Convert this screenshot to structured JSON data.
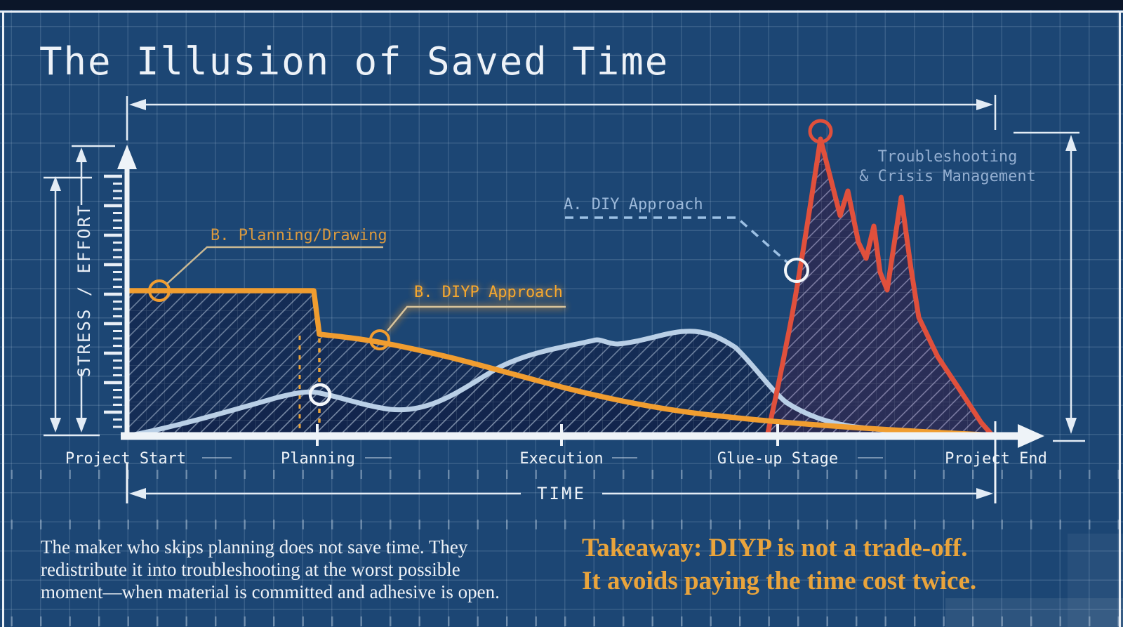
{
  "frame": {
    "title": "The Illusion of Saved Time"
  },
  "colors": {
    "background": "#1c4674",
    "grid": "#c6daf0",
    "white_ink": "#eef3f8",
    "orange": "#f09d30",
    "orange_label_muted": "#d9993f",
    "orange_label_bright": "#f7a82e",
    "red": "#e0503c",
    "light_blue_curve": "#b9cfe6",
    "blue_label": "#9cb9da",
    "takeaway_text": "#e9a43c"
  },
  "axis": {
    "y_label": "STRESS / EFFORT",
    "x_label": "TIME",
    "stages": [
      {
        "label": "Project Start"
      },
      {
        "label": "Planning"
      },
      {
        "label": "Execution"
      },
      {
        "label": "Glue-up Stage"
      },
      {
        "label": "Project End"
      }
    ]
  },
  "callouts": {
    "planning": {
      "label": "B. Planning/Drawing"
    },
    "diyp": {
      "label": "B. DIYP Approach"
    },
    "diy": {
      "label": "A. DIY Approach"
    },
    "crisis": {
      "line1": "Troubleshooting",
      "line2": "& Crisis Management"
    }
  },
  "footer": {
    "paragraph": [
      "The maker who skips planning does not save time. They",
      "redistribute it into troubleshooting at the worst possible",
      "moment—when material is committed and adhesive is open."
    ],
    "takeaway": [
      "Takeaway: DIYP is not a trade-off.",
      "It avoids paying the time cost twice."
    ]
  },
  "chart_data": {
    "type": "line",
    "title": "The Illusion of Saved Time",
    "xlabel": "TIME",
    "ylabel": "STRESS / EFFORT",
    "x_unit": "percent_of_project_timeline",
    "ylim": [
      0,
      100
    ],
    "grid": true,
    "stages": [
      {
        "label": "Project Start",
        "x": 0
      },
      {
        "label": "Planning",
        "x": 21.8
      },
      {
        "label": "Execution",
        "x": 50
      },
      {
        "label": "Glue-up Stage",
        "x": 75
      },
      {
        "label": "Project End",
        "x": 100
      }
    ],
    "series": [
      {
        "name": "B. DIYP Approach",
        "color": "#f09d30",
        "points": [
          [
            0,
            48
          ],
          [
            21.5,
            48
          ],
          [
            22.2,
            34
          ],
          [
            28,
            33
          ],
          [
            34,
            31
          ],
          [
            42,
            26
          ],
          [
            50,
            20
          ],
          [
            58,
            14
          ],
          [
            66,
            9
          ],
          [
            74,
            6
          ],
          [
            82,
            3.5
          ],
          [
            90,
            2
          ],
          [
            100,
            0
          ]
        ]
      },
      {
        "name": "A. DIY Approach",
        "color": "#b9cfe6",
        "points": [
          [
            0,
            0
          ],
          [
            6,
            3
          ],
          [
            13,
            8
          ],
          [
            17.7,
            12.7
          ],
          [
            21.8,
            14.3
          ],
          [
            26,
            11
          ],
          [
            30.3,
            8.6
          ],
          [
            36,
            13.5
          ],
          [
            42.8,
            21.5
          ],
          [
            51.7,
            32.6
          ],
          [
            56.5,
            34.3
          ],
          [
            59.7,
            32.6
          ],
          [
            64.3,
            36.6
          ],
          [
            70,
            27.5
          ],
          [
            75.8,
            11.6
          ],
          [
            83.7,
            3
          ],
          [
            92,
            1
          ],
          [
            99.5,
            0
          ]
        ]
      },
      {
        "name": "Troubleshooting & Crisis Management (DIY spike)",
        "color": "#e0503c",
        "points": [
          [
            73.7,
            0
          ],
          [
            74.6,
            12
          ],
          [
            76,
            31
          ],
          [
            77.4,
            52
          ],
          [
            79.9,
            100
          ],
          [
            82.1,
            73
          ],
          [
            83,
            81
          ],
          [
            84.2,
            64
          ],
          [
            85,
            59
          ],
          [
            85.9,
            69
          ],
          [
            86.7,
            54
          ],
          [
            87.5,
            48
          ],
          [
            89.1,
            79
          ],
          [
            90.2,
            55
          ],
          [
            91.1,
            39
          ],
          [
            93.3,
            26
          ],
          [
            95.7,
            16
          ],
          [
            98.3,
            4
          ],
          [
            99.6,
            0
          ]
        ]
      }
    ],
    "annotations": [
      {
        "text": "B. Planning/Drawing",
        "attached_to": "DIYP plateau start",
        "x": 3.7,
        "y": 48
      },
      {
        "text": "B. DIYP Approach",
        "attached_to": "DIYP after planning drop",
        "x": 29,
        "y": 33
      },
      {
        "text": "A. DIY Approach",
        "attached_to": "DIY crisis-spike left flank",
        "x": 77,
        "y": 55
      },
      {
        "text": "Troubleshooting & Crisis Management",
        "attached_to": "red spike peak",
        "x": 79.9,
        "y": 100
      }
    ],
    "dimension_markers": [
      "total project time span (top)",
      "TIME span (bottom)",
      "stress scale (left)",
      "crisis peak height (right)"
    ]
  }
}
